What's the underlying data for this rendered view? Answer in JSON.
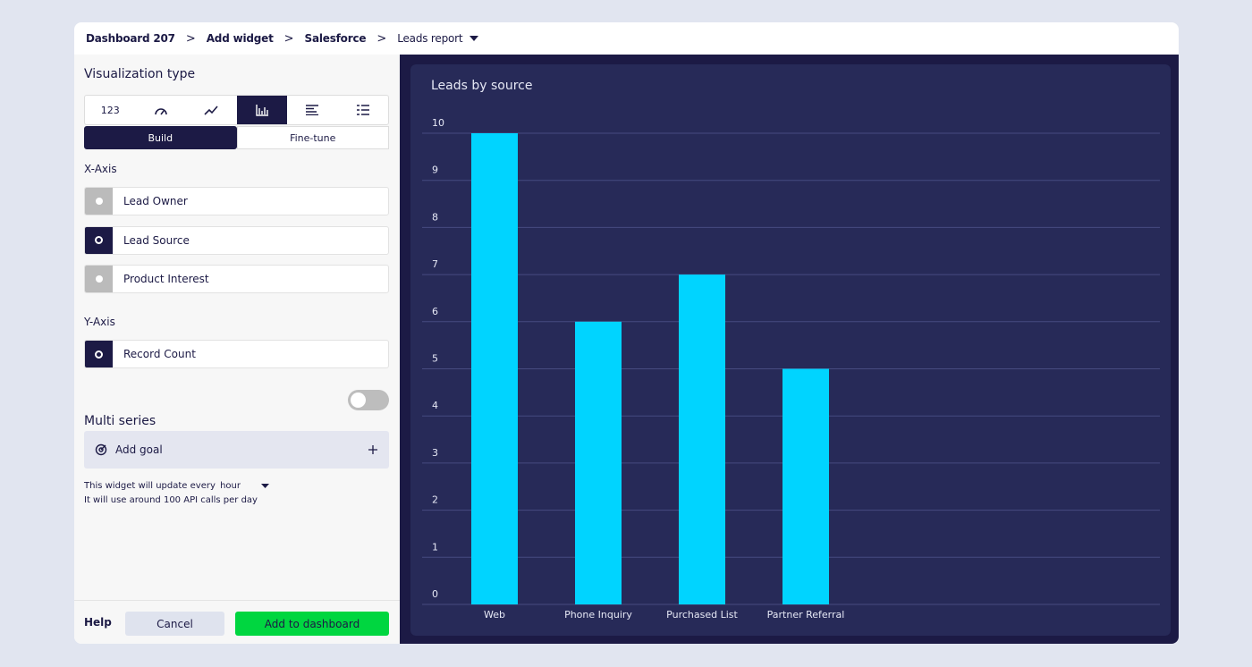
{
  "breadcrumb": [
    "Dashboard 207",
    "Add widget",
    "Salesforce",
    "Leads report"
  ],
  "panel": {
    "title": "Visualization type",
    "viz_number": "123",
    "tabs": [
      "Build",
      "Fine-tune"
    ],
    "x_axis": {
      "label": "X-Axis",
      "options": [
        "Lead Owner",
        "Lead Source",
        "Product Interest"
      ],
      "selected": 1
    },
    "y_axis": {
      "label": "Y-Axis",
      "options": [
        "Record Count"
      ],
      "selected": 0
    },
    "multi_series": "Multi series",
    "multi_series_on": false,
    "add_goal": "Add goal",
    "update_note": "This widget will update every",
    "update_interval": "hour",
    "api_note": "It will use around 100 API calls per day"
  },
  "footer": {
    "help": "Help",
    "cancel": "Cancel",
    "add": "Add to dashboard"
  },
  "chart_data": {
    "type": "bar",
    "title": "Leads by source",
    "categories": [
      "Web",
      "Phone Inquiry",
      "Purchased List",
      "Partner Referral"
    ],
    "values": [
      10,
      6,
      7,
      5
    ],
    "color": "#00d4ff",
    "ylim": [
      0,
      10
    ],
    "yticks": [
      0,
      1,
      2,
      3,
      4,
      5,
      6,
      7,
      8,
      9,
      10
    ],
    "grid": true
  }
}
